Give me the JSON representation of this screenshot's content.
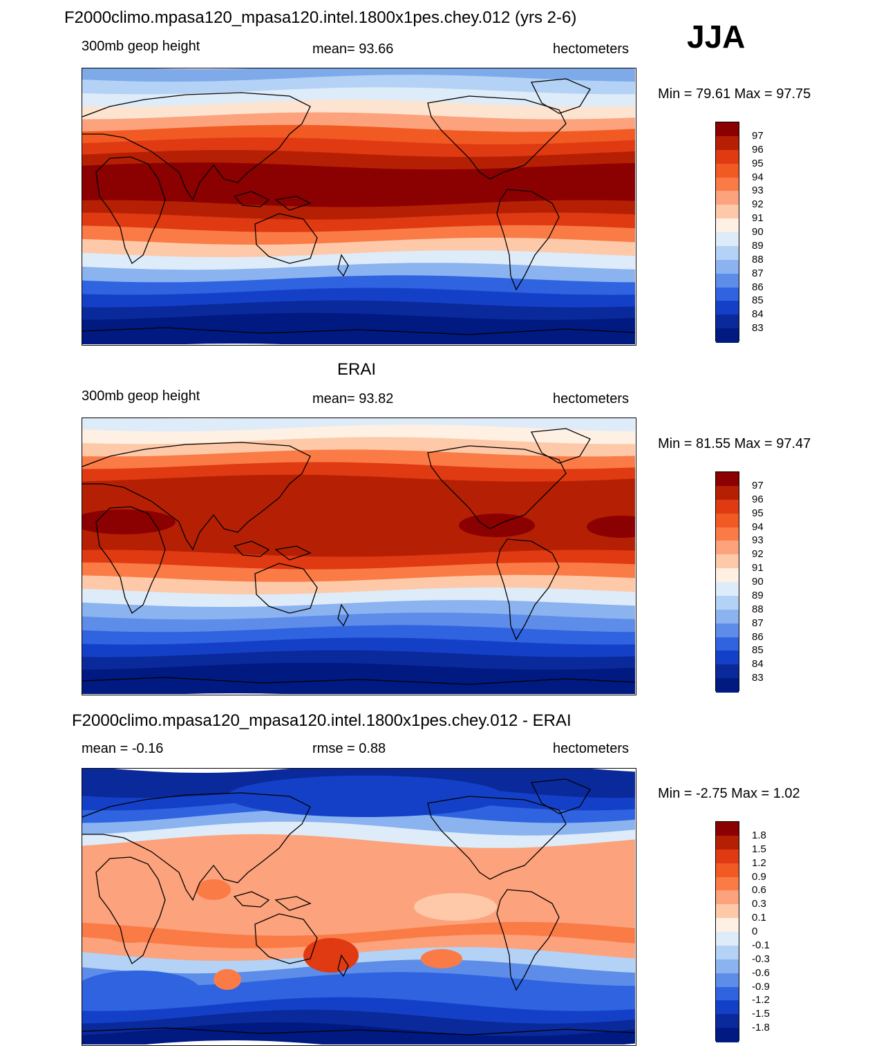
{
  "season": "JJA",
  "panels": [
    {
      "title": "F2000climo.mpasa120_mpasa120.intel.1800x1pes.chey.012 (yrs 2-6)",
      "left_label": "300mb geop height",
      "center_label": "mean=  93.66",
      "right_label": "hectometers",
      "minmax": "Min =  79.61 Max =  97.75",
      "colorbar": {
        "labels": [
          "97",
          "96",
          "95",
          "94",
          "93",
          "92",
          "91",
          "90",
          "89",
          "88",
          "87",
          "86",
          "85",
          "84",
          "83"
        ],
        "colors": [
          "#8b0000",
          "#b52005",
          "#e03a12",
          "#f25a23",
          "#fa7b46",
          "#fca27c",
          "#fdc9a9",
          "#fef0e2",
          "#deebf8",
          "#b3d2f5",
          "#8bb3f0",
          "#5d8de8",
          "#2f63e0",
          "#1440c8",
          "#0a2a9c",
          "#001a82"
        ]
      },
      "map_field": "model",
      "map_bands": [
        {
          "c": "#7faaea"
        },
        {
          "c": "#b3d2f5"
        },
        {
          "c": "#deebf8"
        },
        {
          "c": "#fde4d0"
        },
        {
          "c": "#fca27c"
        },
        {
          "c": "#f25a23"
        },
        {
          "c": "#e03a12"
        },
        {
          "c": "#b52005"
        },
        {
          "c": "#8b0000"
        },
        {
          "c": "#8b0000"
        },
        {
          "c": "#8b0000"
        },
        {
          "c": "#b52005"
        },
        {
          "c": "#e03a12"
        },
        {
          "c": "#fa7b46"
        },
        {
          "c": "#fdc9a9"
        },
        {
          "c": "#deebf8"
        },
        {
          "c": "#8bb3f0"
        },
        {
          "c": "#2f63e0"
        },
        {
          "c": "#1440c8"
        },
        {
          "c": "#0a2a9c"
        },
        {
          "c": "#001a82"
        },
        {
          "c": "#001a82"
        }
      ]
    },
    {
      "title": "ERAI",
      "left_label": "300mb geop height",
      "center_label": "mean=  93.82",
      "right_label": "hectometers",
      "minmax": "Min =  81.55 Max =  97.47",
      "colorbar": {
        "labels": [
          "97",
          "96",
          "95",
          "94",
          "93",
          "92",
          "91",
          "90",
          "89",
          "88",
          "87",
          "86",
          "85",
          "84",
          "83"
        ],
        "colors": [
          "#8b0000",
          "#b52005",
          "#e03a12",
          "#f25a23",
          "#fa7b46",
          "#fca27c",
          "#fdc9a9",
          "#fef0e2",
          "#deebf8",
          "#b3d2f5",
          "#8bb3f0",
          "#5d8de8",
          "#2f63e0",
          "#1440c8",
          "#0a2a9c",
          "#001a82"
        ]
      },
      "map_field": "obs",
      "map_bands": [
        {
          "c": "#deebf8"
        },
        {
          "c": "#fef0e2"
        },
        {
          "c": "#fdc9a9"
        },
        {
          "c": "#fa7b46"
        },
        {
          "c": "#e03a12"
        },
        {
          "c": "#b52005"
        },
        {
          "c": "#b52005"
        },
        {
          "c": "#b52005"
        },
        {
          "c": "#b52005"
        },
        {
          "c": "#b52005"
        },
        {
          "c": "#b52005"
        },
        {
          "c": "#e03a12"
        },
        {
          "c": "#fa7b46"
        },
        {
          "c": "#fdc9a9"
        },
        {
          "c": "#deebf8"
        },
        {
          "c": "#8bb3f0"
        },
        {
          "c": "#5d8de8"
        },
        {
          "c": "#2f63e0"
        },
        {
          "c": "#1440c8"
        },
        {
          "c": "#0a2a9c"
        },
        {
          "c": "#001a82"
        },
        {
          "c": "#001a82"
        }
      ]
    },
    {
      "title": "F2000climo.mpasa120_mpasa120.intel.1800x1pes.chey.012 - ERAI",
      "left_label": "mean =  -0.16",
      "center_label": "rmse =   0.88",
      "right_label": "hectometers",
      "minmax": "Min =  -2.75 Max =   1.02",
      "colorbar": {
        "labels": [
          "1.8",
          "1.5",
          "1.2",
          "0.9",
          "0.6",
          "0.3",
          "0.1",
          "0",
          "-0.1",
          "-0.3",
          "-0.6",
          "-0.9",
          "-1.2",
          "-1.5",
          "-1.8"
        ],
        "colors": [
          "#8b0000",
          "#b52005",
          "#e03a12",
          "#f25a23",
          "#fa7b46",
          "#fca27c",
          "#fdc9a9",
          "#fef0e2",
          "#deebf8",
          "#b3d2f5",
          "#8bb3f0",
          "#5d8de8",
          "#2f63e0",
          "#1440c8",
          "#0a2a9c",
          "#001a82"
        ]
      },
      "map_field": "diff",
      "map_bands": [
        {
          "c": "#0a2a9c"
        },
        {
          "c": "#0a2a9c"
        },
        {
          "c": "#1440c8"
        },
        {
          "c": "#2f63e0"
        },
        {
          "c": "#8bb3f0"
        },
        {
          "c": "#deebf8"
        },
        {
          "c": "#fca27c"
        },
        {
          "c": "#fca27c"
        },
        {
          "c": "#fca27c"
        },
        {
          "c": "#fca27c"
        },
        {
          "c": "#fca27c"
        },
        {
          "c": "#fca27c"
        },
        {
          "c": "#fca27c"
        },
        {
          "c": "#fa7b46"
        },
        {
          "c": "#fca27c"
        },
        {
          "c": "#b3d2f5"
        },
        {
          "c": "#5d8de8"
        },
        {
          "c": "#2f63e0"
        },
        {
          "c": "#2f63e0"
        },
        {
          "c": "#1440c8"
        },
        {
          "c": "#0a2a9c"
        },
        {
          "c": "#001a82"
        }
      ]
    }
  ]
}
